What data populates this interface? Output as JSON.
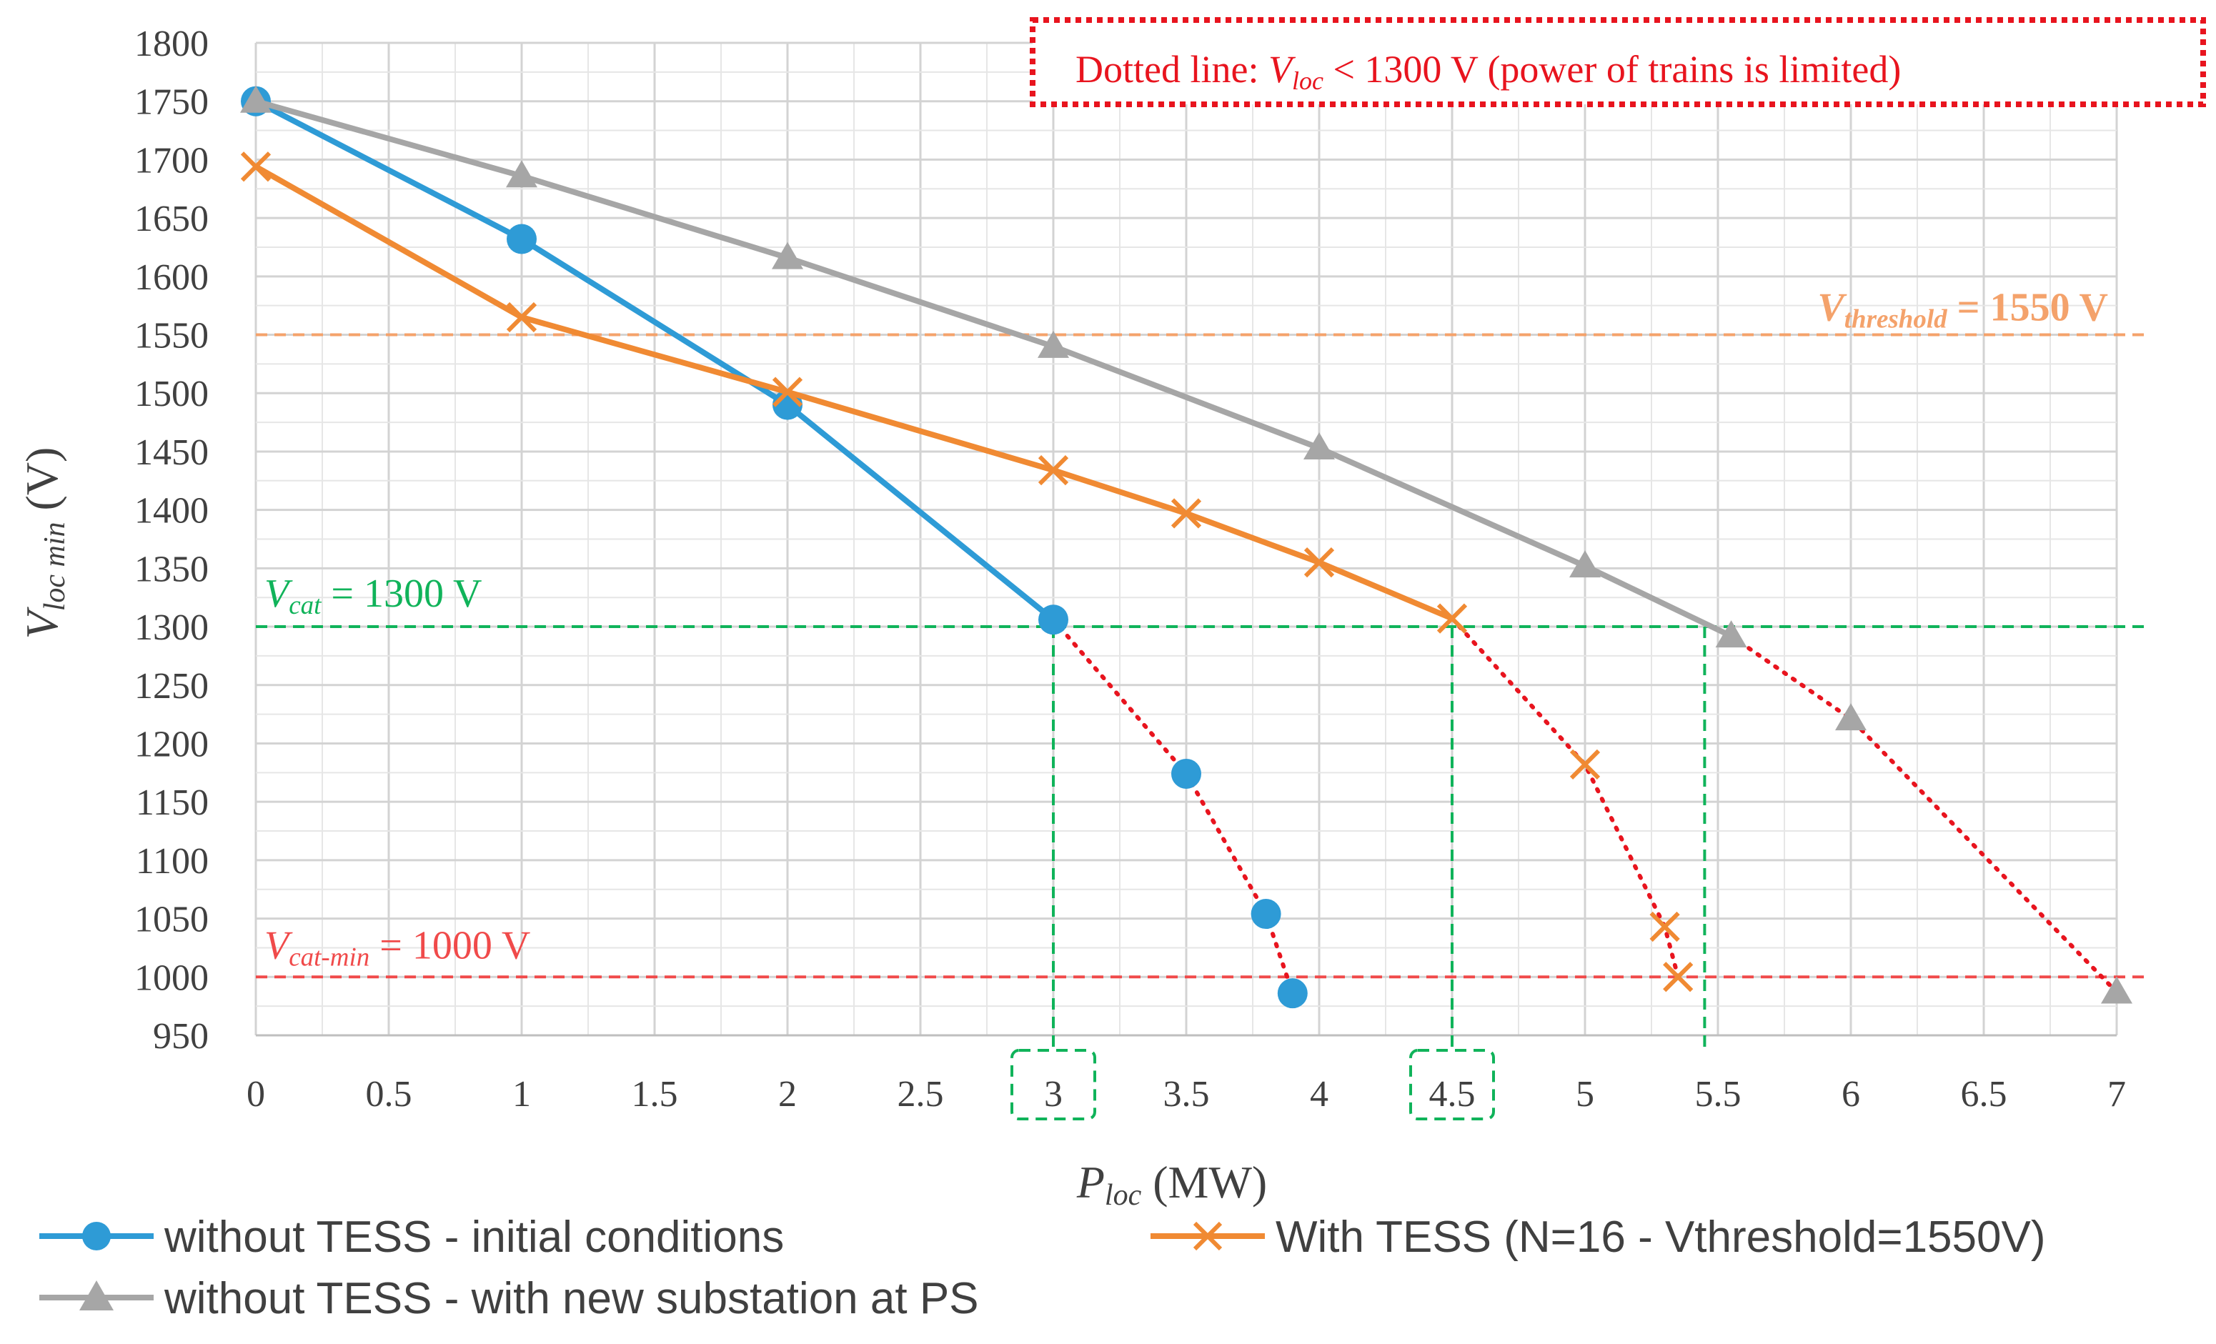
{
  "chart_data": {
    "type": "line",
    "x_axis": {
      "title_main": "P",
      "title_sub": "loc",
      "title_unit": " (MW)",
      "range": [
        0,
        7
      ],
      "major_ticks": [
        0,
        0.5,
        1,
        1.5,
        2,
        2.5,
        3,
        3.5,
        4,
        4.5,
        5,
        5.5,
        6,
        6.5,
        7
      ],
      "tick_labels": [
        "0",
        "0.5",
        "1",
        "1.5",
        "2",
        "2.5",
        "3",
        "3.5",
        "4",
        "4.5",
        "5",
        "5.5",
        "6",
        "6.5",
        "7"
      ],
      "minor_step": 0.25,
      "highlighted_ticks": [
        3,
        4.5
      ]
    },
    "y_axis": {
      "title_main": "V",
      "title_sub": "loc min",
      "title_unit": " (V)",
      "range": [
        950,
        1800
      ],
      "major_ticks": [
        950,
        1000,
        1050,
        1100,
        1150,
        1200,
        1250,
        1300,
        1350,
        1400,
        1450,
        1500,
        1550,
        1600,
        1650,
        1700,
        1750,
        1800
      ],
      "tick_labels": [
        "950",
        "1000",
        "1050",
        "1100",
        "1150",
        "1200",
        "1250",
        "1300",
        "1350",
        "1400",
        "1450",
        "1500",
        "1550",
        "1600",
        "1650",
        "1700",
        "1750",
        "1800"
      ],
      "minor_step": 25
    },
    "grid": true,
    "series": [
      {
        "name": "without TESS - initial conditions",
        "color": "#2E9BD6",
        "marker": "circle",
        "solid_points": [
          [
            0,
            1750
          ],
          [
            1,
            1632
          ],
          [
            2,
            1490
          ],
          [
            3,
            1306
          ]
        ],
        "dotted_points": [
          [
            3,
            1306
          ],
          [
            3.5,
            1174
          ],
          [
            3.8,
            1054
          ],
          [
            3.9,
            986
          ]
        ]
      },
      {
        "name": "With TESS (N=16 - Vthreshold=1550V)",
        "color": "#F08A33",
        "marker": "x",
        "solid_points": [
          [
            0,
            1694
          ],
          [
            1,
            1565
          ],
          [
            2,
            1501
          ],
          [
            3,
            1434
          ],
          [
            3.5,
            1397
          ],
          [
            4,
            1355
          ],
          [
            4.5,
            1307
          ]
        ],
        "dotted_points": [
          [
            4.5,
            1307
          ],
          [
            5,
            1182
          ],
          [
            5.3,
            1043
          ],
          [
            5.35,
            1000
          ]
        ]
      },
      {
        "name": "without TESS - with new substation at PS",
        "color": "#A6A6A6",
        "marker": "triangle",
        "solid_points": [
          [
            0,
            1750
          ],
          [
            1,
            1686
          ],
          [
            2,
            1616
          ],
          [
            3,
            1540
          ],
          [
            4,
            1453
          ],
          [
            5,
            1352
          ],
          [
            5.55,
            1292
          ]
        ],
        "dotted_points": [
          [
            5.55,
            1292
          ],
          [
            6,
            1221
          ],
          [
            7,
            987
          ]
        ]
      }
    ],
    "reference_lines": [
      {
        "name": "V_threshold",
        "y": 1550,
        "color": "#F4A26B",
        "label_main": "V",
        "label_sub": "threshold",
        "label_rest": " = 1550 V"
      },
      {
        "name": "V_cat",
        "y": 1300,
        "color": "#10B35A",
        "label_main": "V",
        "label_sub": "cat",
        "label_rest": " = 1300 V"
      },
      {
        "name": "V_cat_min",
        "y": 1000,
        "color": "#F04A4A",
        "label_main": "V",
        "label_sub": "cat-min",
        "label_rest": " = 1000 V"
      }
    ],
    "vertical_markers": [
      {
        "x": 3,
        "color": "#10B35A"
      },
      {
        "x": 4.5,
        "color": "#10B35A"
      },
      {
        "x": 5.45,
        "color": "#10B35A"
      }
    ],
    "note": {
      "prefix": "Dotted line: ",
      "var_main": "V",
      "var_sub": "loc",
      "suffix": " < 1300 V (power of trains is limited)",
      "color": "#E8141E"
    },
    "legend_position": "bottom"
  }
}
